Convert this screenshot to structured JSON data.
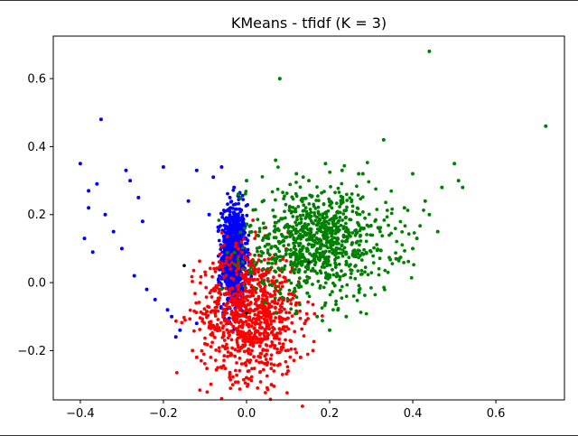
{
  "chart_data": {
    "type": "scatter",
    "title": "KMeans - tfidf (K = 3)",
    "xlabel": "",
    "ylabel": "",
    "xlim": [
      -0.465,
      0.765
    ],
    "ylim": [
      -0.345,
      0.725
    ],
    "x_ticks": [
      -0.4,
      -0.2,
      0.0,
      0.2,
      0.4,
      0.6
    ],
    "x_tick_labels": [
      "−0.4",
      "−0.2",
      "0.0",
      "0.2",
      "0.4",
      "0.6"
    ],
    "y_ticks": [
      -0.2,
      0.0,
      0.2,
      0.4,
      0.6
    ],
    "y_tick_labels": [
      "−0.2",
      "0.0",
      "0.2",
      "0.4",
      "0.6"
    ],
    "grid": false,
    "legend": "none",
    "series": [
      {
        "color": "#0000ff",
        "cluster_center": [
          -0.15,
          0.05
        ],
        "core": {
          "x": [
            -0.06,
            0.0
          ],
          "y": [
            -0.08,
            0.23
          ]
        },
        "values": [
          [
            -0.35,
            0.48
          ],
          [
            -0.4,
            0.35
          ],
          [
            -0.38,
            0.27
          ],
          [
            -0.36,
            0.29
          ],
          [
            -0.38,
            0.22
          ],
          [
            -0.39,
            0.13
          ],
          [
            -0.37,
            0.09
          ],
          [
            -0.34,
            0.2
          ],
          [
            -0.32,
            0.15
          ],
          [
            -0.29,
            0.33
          ],
          [
            -0.28,
            0.3
          ],
          [
            -0.26,
            0.25
          ],
          [
            -0.2,
            0.34
          ],
          [
            -0.12,
            0.33
          ],
          [
            -0.06,
            0.34
          ],
          [
            -0.08,
            0.31
          ],
          [
            -0.03,
            0.28
          ],
          [
            -0.04,
            0.25
          ],
          [
            -0.3,
            0.1
          ],
          [
            -0.27,
            0.02
          ],
          [
            -0.24,
            -0.02
          ],
          [
            -0.22,
            -0.05
          ],
          [
            -0.18,
            -0.1
          ],
          [
            -0.16,
            -0.14
          ],
          [
            -0.17,
            -0.16
          ],
          [
            -0.12,
            -0.12
          ],
          [
            -0.19,
            -0.08
          ],
          [
            -0.25,
            0.18
          ],
          [
            -0.14,
            0.24
          ],
          [
            -0.09,
            0.2
          ]
        ]
      },
      {
        "color": "#ff0000",
        "cluster_center": [
          0.0,
          -0.09
        ],
        "core": {
          "x": [
            -0.11,
            0.13
          ],
          "y": [
            -0.28,
            0.1
          ]
        },
        "values": [
          [
            -0.13,
            -0.2
          ],
          [
            -0.12,
            -0.22
          ],
          [
            -0.06,
            -0.25
          ],
          [
            0.0,
            -0.28
          ],
          [
            0.06,
            -0.3
          ],
          [
            0.1,
            -0.26
          ],
          [
            0.13,
            -0.22
          ],
          [
            0.16,
            -0.2
          ],
          [
            0.12,
            -0.06
          ],
          [
            0.14,
            -0.12
          ],
          [
            -0.02,
            0.1
          ],
          [
            0.03,
            0.08
          ],
          [
            -0.1,
            -0.18
          ],
          [
            0.08,
            -0.24
          ],
          [
            -0.04,
            -0.27
          ]
        ]
      },
      {
        "color": "#008000",
        "cluster_center": [
          0.15,
          0.06
        ],
        "core": {
          "x": [
            0.0,
            0.35
          ],
          "y": [
            -0.04,
            0.28
          ]
        },
        "values": [
          [
            0.44,
            0.68
          ],
          [
            0.08,
            0.6
          ],
          [
            0.72,
            0.46
          ],
          [
            0.33,
            0.42
          ],
          [
            0.19,
            0.35
          ],
          [
            0.23,
            0.33
          ],
          [
            0.27,
            0.32
          ],
          [
            0.28,
            0.32
          ],
          [
            0.4,
            0.32
          ],
          [
            0.5,
            0.35
          ],
          [
            0.51,
            0.3
          ],
          [
            0.52,
            0.28
          ],
          [
            0.47,
            0.28
          ],
          [
            0.43,
            0.24
          ],
          [
            0.44,
            0.2
          ],
          [
            0.46,
            0.15
          ],
          [
            0.38,
            0.22
          ],
          [
            0.41,
            0.13
          ],
          [
            0.4,
            0.1
          ],
          [
            0.36,
            0.07
          ],
          [
            0.07,
            0.36
          ],
          [
            0.12,
            0.32
          ],
          [
            0.15,
            0.3
          ],
          [
            -0.02,
            0.26
          ],
          [
            0.0,
            0.3
          ],
          [
            0.17,
            -0.1
          ],
          [
            0.2,
            -0.14
          ],
          [
            0.22,
            -0.08
          ],
          [
            0.24,
            -0.1
          ],
          [
            0.19,
            -0.06
          ]
        ]
      }
    ],
    "centroids": [
      [
        -0.15,
        0.05
      ],
      [
        0.0,
        -0.09
      ],
      [
        0.15,
        0.06
      ]
    ],
    "centroid_color": "#000000"
  }
}
